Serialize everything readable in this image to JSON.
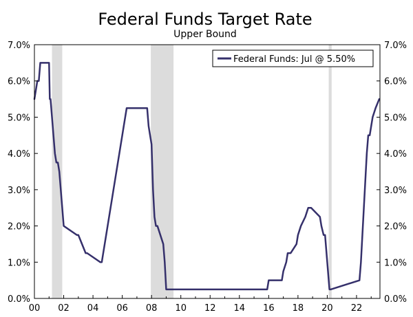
{
  "chart_data": {
    "type": "line",
    "title": "Federal Funds Target Rate",
    "subtitle": "Upper Bound",
    "xlabel": "",
    "ylabel": "",
    "xlim": [
      2000.0,
      2023.6
    ],
    "ylim": [
      0,
      7
    ],
    "yticks": [
      0,
      1,
      2,
      3,
      4,
      5,
      6,
      7
    ],
    "ytick_labels": [
      "0.0%",
      "1.0%",
      "2.0%",
      "3.0%",
      "4.0%",
      "5.0%",
      "6.0%",
      "7.0%"
    ],
    "xticks": [
      2000,
      2002,
      2004,
      2006,
      2008,
      2010,
      2012,
      2014,
      2016,
      2018,
      2020,
      2022
    ],
    "xtick_labels": [
      "00",
      "02",
      "04",
      "06",
      "08",
      "10",
      "12",
      "14",
      "16",
      "18",
      "20",
      "22"
    ],
    "legend": {
      "label": "Federal Funds: Jul @ 5.50%",
      "placement": "top-right"
    },
    "recessions": [
      [
        2001.2,
        2001.9
      ],
      [
        2007.95,
        2009.5
      ],
      [
        2020.1,
        2020.3
      ]
    ],
    "series": [
      {
        "name": "Federal Funds: Jul @ 5.50%",
        "color": "#35306b",
        "x": [
          2000.0,
          2000.1,
          2000.2,
          2000.3,
          2000.4,
          2000.5,
          2001.0,
          2001.05,
          2001.1,
          2001.2,
          2001.3,
          2001.4,
          2001.5,
          2001.6,
          2001.7,
          2001.8,
          2001.9,
          2002.0,
          2002.9,
          2003.0,
          2003.5,
          2003.6,
          2004.5,
          2004.6,
          2004.7,
          2004.8,
          2004.9,
          2005.0,
          2005.1,
          2005.2,
          2005.3,
          2005.4,
          2005.5,
          2005.6,
          2005.7,
          2005.8,
          2005.9,
          2006.0,
          2006.1,
          2006.2,
          2006.3,
          2006.4,
          2006.5,
          2007.7,
          2007.8,
          2007.9,
          2008.0,
          2008.1,
          2008.2,
          2008.3,
          2008.4,
          2008.8,
          2008.9,
          2009.0,
          2015.9,
          2016.0,
          2016.9,
          2017.0,
          2017.2,
          2017.3,
          2017.5,
          2017.9,
          2018.0,
          2018.2,
          2018.5,
          2018.7,
          2018.9,
          2019.5,
          2019.6,
          2019.75,
          2019.85,
          2020.15,
          2020.25,
          2022.2,
          2022.3,
          2022.4,
          2022.5,
          2022.6,
          2022.7,
          2022.8,
          2022.9,
          2023.0,
          2023.1,
          2023.3,
          2023.55
        ],
        "values": [
          5.5,
          5.75,
          6.0,
          6.0,
          6.5,
          6.5,
          6.5,
          5.5,
          5.5,
          5.0,
          4.5,
          4.0,
          3.75,
          3.75,
          3.5,
          3.0,
          2.5,
          2.0,
          1.75,
          1.75,
          1.25,
          1.25,
          1.0,
          1.0,
          1.25,
          1.5,
          1.75,
          2.0,
          2.25,
          2.5,
          2.75,
          3.0,
          3.25,
          3.5,
          3.75,
          4.0,
          4.25,
          4.5,
          4.75,
          5.0,
          5.25,
          5.25,
          5.25,
          5.25,
          4.75,
          4.5,
          4.25,
          3.0,
          2.25,
          2.0,
          2.0,
          1.5,
          1.0,
          0.25,
          0.25,
          0.5,
          0.5,
          0.75,
          1.0,
          1.25,
          1.25,
          1.5,
          1.75,
          2.0,
          2.25,
          2.5,
          2.5,
          2.25,
          2.0,
          1.75,
          1.75,
          0.25,
          0.25,
          0.5,
          1.0,
          1.75,
          2.5,
          3.25,
          4.0,
          4.5,
          4.5,
          4.75,
          5.0,
          5.25,
          5.5
        ]
      }
    ]
  }
}
